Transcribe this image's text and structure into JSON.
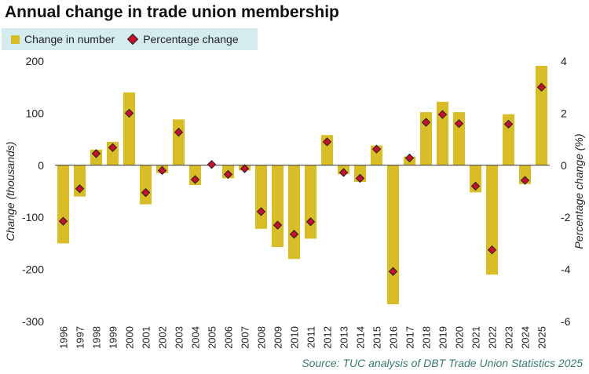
{
  "title": "Annual change in trade union membership",
  "source": "Source: TUC analysis of DBT Trade Union Statistics 2025",
  "colors": {
    "bar": "#d8bd26",
    "marker": "#c8102e",
    "legend_bg": "#d4ecf0",
    "source": "#3a7a72"
  },
  "chart_data": {
    "type": "bar",
    "title": "Annual change in trade union membership",
    "categories": [
      "1996",
      "1997",
      "1998",
      "1999",
      "2000",
      "2001",
      "2002",
      "2003",
      "2004",
      "2005",
      "2006",
      "2007",
      "2008",
      "2009",
      "2010",
      "2011",
      "2012",
      "2013",
      "2014",
      "2015",
      "2016",
      "2017",
      "2018",
      "2019",
      "2020",
      "2021",
      "2022",
      "2023",
      "2024",
      "2025"
    ],
    "series": [
      {
        "name": "Change in number",
        "axis": "left",
        "type": "bar",
        "values": [
          -150,
          -60,
          30,
          45,
          140,
          -75,
          -15,
          88,
          -38,
          0,
          -25,
          -10,
          -122,
          -157,
          -180,
          -141,
          58,
          -17,
          -32,
          38,
          -267,
          17,
          102,
          122,
          102,
          -52,
          -210,
          98,
          -36,
          191
        ]
      },
      {
        "name": "Percentage change",
        "axis": "right",
        "type": "scatter",
        "marker": "diamond",
        "values": [
          -2.15,
          -0.9,
          0.45,
          0.68,
          2.0,
          -1.05,
          -0.2,
          1.27,
          -0.55,
          0.03,
          -0.35,
          -0.13,
          -1.78,
          -2.3,
          -2.65,
          -2.17,
          0.9,
          -0.28,
          -0.5,
          0.62,
          -4.08,
          0.28,
          1.65,
          1.95,
          1.6,
          -0.8,
          -3.25,
          1.58,
          -0.58,
          3.0
        ]
      }
    ],
    "ylabel": "Change (thousands)",
    "y2label": "Percentage change (%)",
    "ylim": [
      -300,
      200
    ],
    "y2lim": [
      -6,
      4
    ],
    "yticks": [
      200,
      100,
      0,
      -100,
      -200,
      -300
    ],
    "y2ticks": [
      4,
      2,
      0,
      -2,
      -4,
      -6
    ],
    "legend": "top-left",
    "grid": false
  }
}
